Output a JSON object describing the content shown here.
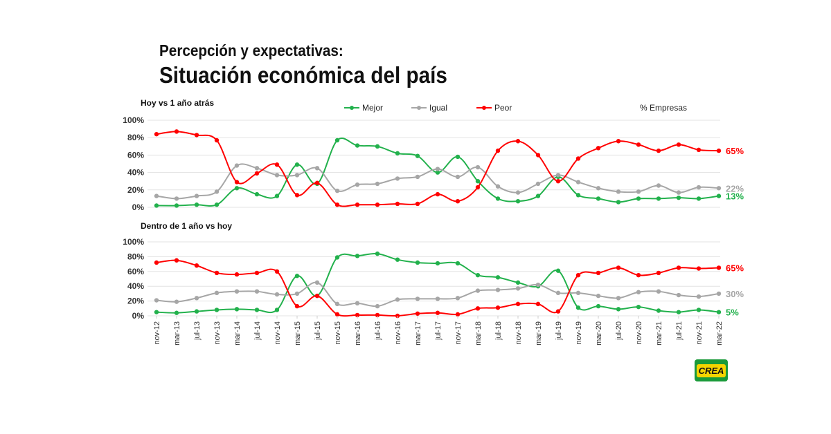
{
  "header": {
    "subtitle": "Percepción y expectativas:",
    "title": "Situación económica del país"
  },
  "unit_label": "% Empresas",
  "logo_text": "CREA",
  "colors": {
    "Mejor": "#22b14c",
    "Igual": "#a6a6a6",
    "Peor": "#ff0000"
  },
  "chart_data": [
    {
      "type": "line",
      "title": "Hoy vs 1 año atrás",
      "ylim": [
        0,
        100
      ],
      "yticks": [
        "0%",
        "20%",
        "40%",
        "60%",
        "80%",
        "100%"
      ],
      "grid": true,
      "legend": "top",
      "categories": [
        "nov-12",
        "mar-13",
        "jul-13",
        "nov-13",
        "mar-14",
        "jul-14",
        "nov-14",
        "mar-15",
        "jul-15",
        "nov-15",
        "mar-16",
        "jul-16",
        "nov-16",
        "mar-17",
        "jul-17",
        "nov-17",
        "mar-18",
        "jul-18",
        "nov-18",
        "mar-19",
        "jul-19",
        "nov-19",
        "mar-20",
        "jul-20",
        "nov-20",
        "mar-21",
        "jul-21",
        "nov-21",
        "mar-22"
      ],
      "series": [
        {
          "name": "Mejor",
          "end_label": "13%",
          "values": [
            2,
            2,
            3,
            3,
            22,
            15,
            13,
            49,
            27,
            77,
            71,
            70,
            62,
            59,
            40,
            58,
            30,
            10,
            7,
            13,
            35,
            14,
            10,
            6,
            10,
            10,
            11,
            10,
            13
          ]
        },
        {
          "name": "Igual",
          "end_label": "22%",
          "values": [
            13,
            10,
            13,
            18,
            48,
            45,
            37,
            37,
            45,
            19,
            26,
            27,
            33,
            35,
            44,
            35,
            46,
            24,
            17,
            27,
            37,
            29,
            22,
            18,
            18,
            25,
            17,
            23,
            22
          ]
        },
        {
          "name": "Peor",
          "end_label": "65%",
          "values": [
            84,
            87,
            83,
            77,
            29,
            39,
            49,
            14,
            28,
            3,
            3,
            3,
            4,
            4,
            15,
            7,
            23,
            65,
            76,
            60,
            30,
            56,
            68,
            76,
            72,
            65,
            72,
            66,
            65
          ]
        }
      ]
    },
    {
      "type": "line",
      "title": "Dentro de 1 año vs hoy",
      "ylim": [
        0,
        100
      ],
      "yticks": [
        "0%",
        "20%",
        "40%",
        "60%",
        "80%",
        "100%"
      ],
      "grid": true,
      "categories": [
        "nov-12",
        "mar-13",
        "jul-13",
        "nov-13",
        "mar-14",
        "jul-14",
        "nov-14",
        "mar-15",
        "jul-15",
        "nov-15",
        "mar-16",
        "jul-16",
        "nov-16",
        "mar-17",
        "jul-17",
        "nov-17",
        "mar-18",
        "jul-18",
        "nov-18",
        "mar-19",
        "jul-19",
        "nov-19",
        "mar-20",
        "jul-20",
        "nov-20",
        "mar-21",
        "jul-21",
        "nov-21",
        "mar-22"
      ],
      "series": [
        {
          "name": "Mejor",
          "end_label": "5%",
          "values": [
            5,
            4,
            6,
            8,
            9,
            8,
            8,
            54,
            27,
            79,
            81,
            84,
            76,
            72,
            71,
            71,
            55,
            52,
            45,
            40,
            61,
            11,
            13,
            9,
            12,
            7,
            5,
            8,
            5
          ]
        },
        {
          "name": "Igual",
          "end_label": "30%",
          "values": [
            21,
            19,
            24,
            31,
            33,
            33,
            29,
            30,
            45,
            16,
            17,
            13,
            22,
            23,
            23,
            24,
            34,
            35,
            37,
            42,
            31,
            31,
            27,
            24,
            32,
            33,
            28,
            26,
            30
          ]
        },
        {
          "name": "Peor",
          "end_label": "65%",
          "values": [
            72,
            75,
            68,
            58,
            56,
            58,
            60,
            13,
            27,
            2,
            1,
            1,
            0,
            3,
            4,
            2,
            10,
            11,
            16,
            16,
            6,
            55,
            58,
            65,
            55,
            58,
            65,
            64,
            65
          ]
        }
      ]
    }
  ]
}
